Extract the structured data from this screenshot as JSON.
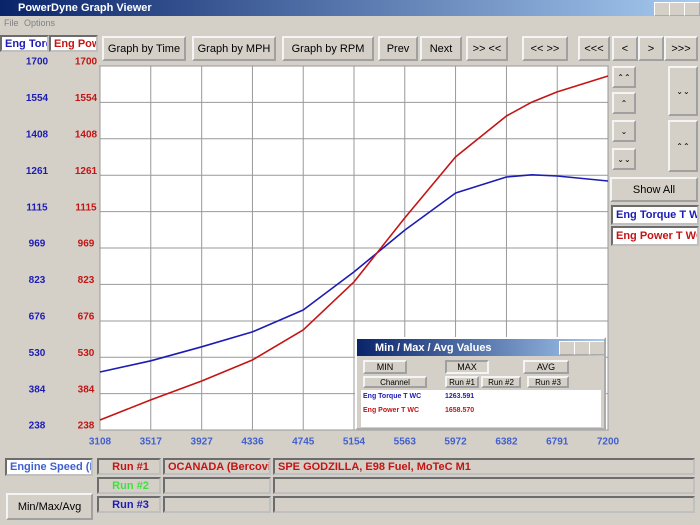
{
  "window": {
    "title": "PowerDyne Graph Viewer",
    "menu": [
      "File",
      "Options"
    ]
  },
  "toolbar": [
    "Graph by Time",
    "Graph by MPH",
    "Graph by RPM",
    "Prev",
    "Next",
    ">> <<",
    "<< >>",
    "<<<",
    "<",
    ">",
    ">>>"
  ],
  "axis_tabs": [
    "Eng Torq",
    "Eng Powe"
  ],
  "side_panel": {
    "show_all": "Show All"
  },
  "chart_data": {
    "type": "line",
    "x": [
      3108,
      3517,
      3927,
      4336,
      4745,
      5154,
      5563,
      5972,
      6382,
      6587,
      6791,
      7200
    ],
    "xlim": [
      3108,
      7200
    ],
    "xticks": [
      3108,
      3517,
      3927,
      4336,
      4745,
      5154,
      5563,
      5972,
      6382,
      6791,
      7200
    ],
    "ylim": [
      238,
      1700
    ],
    "yticks": [
      238,
      384,
      530,
      676,
      823,
      969,
      1115,
      1261,
      1408,
      1554,
      1700
    ],
    "y2lim": [
      238,
      1700
    ],
    "y2ticks": [
      238,
      384,
      530,
      676,
      823,
      969,
      1115,
      1261,
      1408,
      1554,
      1700
    ],
    "grid": true,
    "series": [
      {
        "name": "Eng Torque T WC",
        "color": "#1c1cb4",
        "values": [
          471,
          516,
          572,
          632,
          720,
          873,
          1041,
          1190,
          1254,
          1263,
          1258,
          1238
        ]
      },
      {
        "name": "Eng Power T WC",
        "color": "#c41414",
        "axis": "y2",
        "values": [
          278,
          359,
          435,
          519,
          640,
          833,
          1090,
          1335,
          1499,
          1555,
          1596,
          1660
        ]
      }
    ]
  },
  "bottom": {
    "x_channel": "Engine Speed (RI",
    "runs": [
      {
        "label": "Run #1",
        "name": "OCANADA (Bercovitz",
        "description": "SPE GODZILLA, E98 Fuel, MoTeC M1"
      },
      {
        "label": "Run #2"
      },
      {
        "label": "Run #3"
      }
    ],
    "button": "Min/Max/Avg"
  },
  "dialog": {
    "title": "Min / Max / Avg Values",
    "buttons": [
      "MIN",
      "MAX",
      "AVG"
    ],
    "headers": [
      "Channel",
      "Run #1",
      "Run #2",
      "Run #3"
    ],
    "rows": [
      [
        "Eng Torque T WC",
        "1263.591"
      ],
      [
        "Eng Power T WC",
        "1658.570"
      ]
    ]
  }
}
